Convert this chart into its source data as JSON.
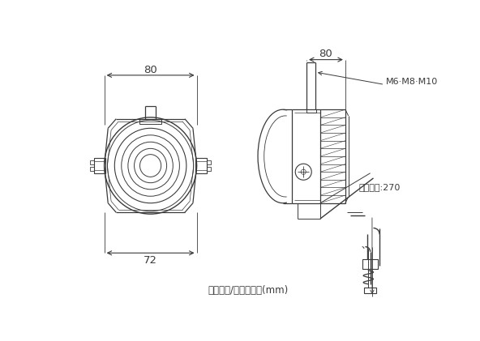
{
  "bg_color": "#ffffff",
  "line_color": "#3a3a3a",
  "text_color": "#3a3a3a",
  "title": "スポット/ワイド寸法(mm)",
  "title_fontsize": 8.5,
  "label_m6": "M6·M8·M10",
  "label_cord": "コード長:270",
  "dim_80_left": "80",
  "dim_72": "72",
  "dim_80_right": "80"
}
